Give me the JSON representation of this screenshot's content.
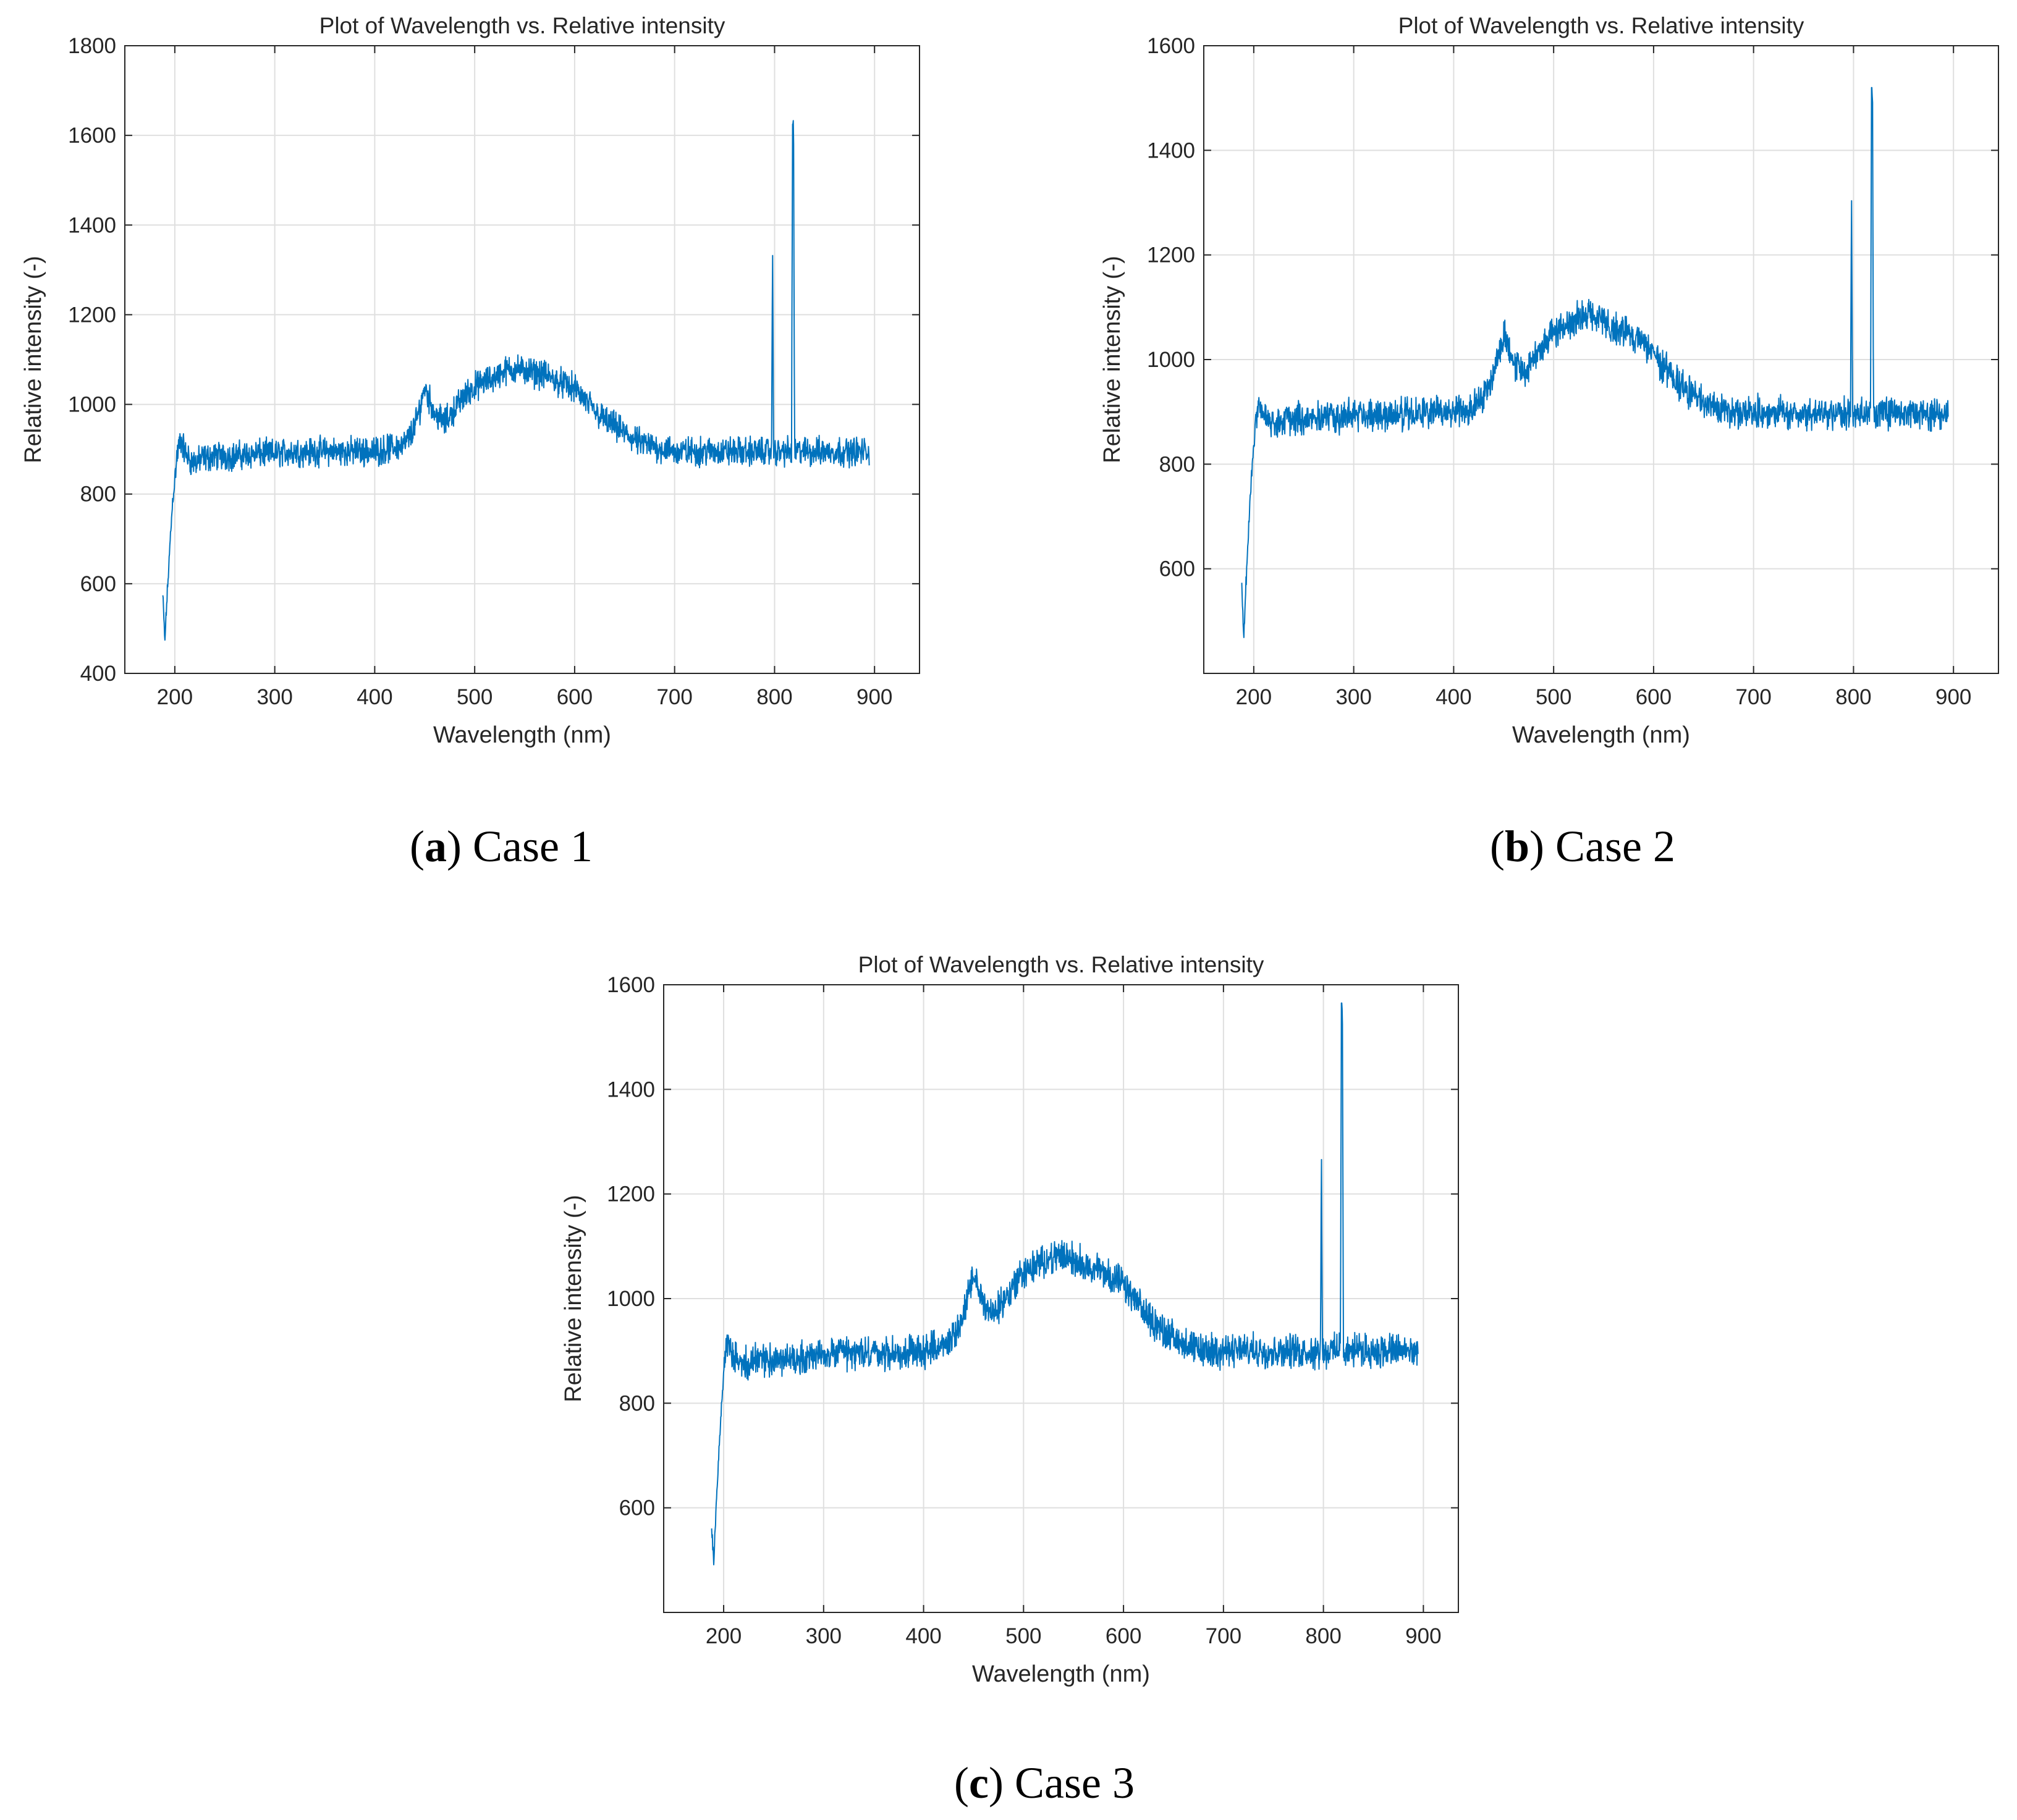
{
  "figure": {
    "line_color": "#0072BD",
    "grid_color": "#dfdfdf",
    "panels": [
      {
        "id": "a",
        "caption": {
          "letter": "a",
          "open": "(",
          "close": ")",
          "text": " Case 1"
        }
      },
      {
        "id": "b",
        "caption": {
          "letter": "b",
          "open": "(",
          "close": ")",
          "text": " Case 2"
        }
      },
      {
        "id": "c",
        "caption": {
          "letter": "c",
          "open": "(",
          "close": ")",
          "text": " Case 3"
        }
      }
    ]
  },
  "chart_data": [
    {
      "type": "line",
      "title": "Plot of Wavelength vs. Relative intensity",
      "xlabel": "Wavelength (nm)",
      "ylabel": "Relative intensity (-)",
      "xlim": [
        150,
        945
      ],
      "ylim": [
        400,
        1800
      ],
      "xticks": [
        200,
        300,
        400,
        500,
        600,
        700,
        800,
        900
      ],
      "xtick_labels": [
        "200",
        "300",
        "400",
        "500",
        "600",
        "700",
        "800",
        "900"
      ],
      "yticks": [
        400,
        600,
        800,
        1000,
        1200,
        1400,
        1600,
        1800
      ],
      "ytick_labels": [
        "400",
        "600",
        "800",
        "1000",
        "1200",
        "1400",
        "1600",
        "1800"
      ],
      "grid": true,
      "series": [
        {
          "name": "Relative intensity",
          "x": [
            188,
            190,
            192,
            194,
            196,
            198,
            200,
            202,
            204,
            206,
            210,
            215,
            220,
            230,
            240,
            260,
            280,
            300,
            320,
            340,
            360,
            380,
            400,
            410,
            420,
            430,
            440,
            445,
            450,
            455,
            460,
            470,
            480,
            490,
            500,
            510,
            520,
            530,
            540,
            550,
            560,
            570,
            580,
            590,
            600,
            610,
            620,
            630,
            640,
            650,
            660,
            670,
            680,
            690,
            700,
            720,
            740,
            760,
            780,
            795,
            797,
            798,
            799,
            800,
            801,
            803,
            810,
            816,
            817,
            818,
            819,
            820,
            821,
            823,
            830,
            840,
            850,
            860,
            870,
            880,
            890,
            895
          ],
          "y": [
            575,
            470,
            560,
            640,
            720,
            790,
            830,
            880,
            905,
            920,
            895,
            875,
            870,
            880,
            885,
            885,
            890,
            890,
            895,
            895,
            895,
            895,
            895,
            900,
            905,
            910,
            950,
            990,
            1040,
            1010,
            980,
            960,
            990,
            1020,
            1040,
            1050,
            1060,
            1075,
            1080,
            1075,
            1070,
            1065,
            1055,
            1045,
            1035,
            1010,
            985,
            965,
            950,
            935,
            920,
            910,
            905,
            900,
            895,
            895,
            895,
            895,
            895,
            895,
            895,
            1355,
            895,
            895,
            895,
            895,
            895,
            895,
            895,
            1625,
            1625,
            895,
            895,
            895,
            895,
            895,
            895,
            895,
            895,
            895,
            895,
            895
          ],
          "noise_amplitude": 28
        }
      ]
    },
    {
      "type": "line",
      "title": "Plot of Wavelength vs. Relative intensity",
      "xlabel": "Wavelength (nm)",
      "ylabel": "Relative intensity (-)",
      "xlim": [
        150,
        945
      ],
      "ylim": [
        400,
        1600
      ],
      "xticks": [
        200,
        300,
        400,
        500,
        600,
        700,
        800,
        900
      ],
      "xtick_labels": [
        "200",
        "300",
        "400",
        "500",
        "600",
        "700",
        "800",
        "900"
      ],
      "yticks": [
        600,
        800,
        1000,
        1200,
        1400,
        1600
      ],
      "ytick_labels": [
        "600",
        "800",
        "1000",
        "1200",
        "1400",
        "1600"
      ],
      "grid": true,
      "series": [
        {
          "name": "Relative intensity",
          "x": [
            188,
            190,
            192,
            194,
            196,
            198,
            200,
            202,
            204,
            206,
            210,
            215,
            220,
            230,
            240,
            260,
            280,
            300,
            320,
            340,
            360,
            380,
            400,
            410,
            420,
            430,
            440,
            445,
            450,
            455,
            460,
            470,
            480,
            490,
            500,
            510,
            520,
            530,
            540,
            550,
            560,
            570,
            580,
            590,
            600,
            610,
            620,
            630,
            640,
            650,
            660,
            670,
            680,
            690,
            700,
            720,
            740,
            760,
            780,
            795,
            797,
            798,
            799,
            800,
            801,
            803,
            810,
            816,
            817,
            818,
            819,
            820,
            821,
            823,
            830,
            840,
            850,
            860,
            870,
            880,
            890,
            895
          ],
          "y": [
            560,
            475,
            560,
            640,
            720,
            790,
            840,
            885,
            905,
            915,
            890,
            880,
            875,
            885,
            885,
            890,
            890,
            895,
            895,
            895,
            895,
            900,
            900,
            905,
            915,
            930,
            975,
            1010,
            1050,
            1030,
            995,
            975,
            1000,
            1030,
            1055,
            1065,
            1075,
            1085,
            1080,
            1070,
            1060,
            1055,
            1045,
            1030,
            1010,
            985,
            965,
            945,
            930,
            920,
            910,
            905,
            900,
            900,
            900,
            900,
            895,
            895,
            895,
            895,
            895,
            1325,
            895,
            895,
            895,
            895,
            895,
            895,
            895,
            1520,
            1520,
            895,
            895,
            895,
            895,
            895,
            895,
            895,
            895,
            895,
            895,
            895
          ],
          "noise_amplitude": 26
        }
      ]
    },
    {
      "type": "line",
      "title": "Plot of Wavelength vs. Relative intensity",
      "xlabel": "Wavelength (nm)",
      "ylabel": "Relative intensity (-)",
      "xlim": [
        140,
        935
      ],
      "ylim": [
        400,
        1600
      ],
      "xticks": [
        200,
        300,
        400,
        500,
        600,
        700,
        800,
        900
      ],
      "xtick_labels": [
        "200",
        "300",
        "400",
        "500",
        "600",
        "700",
        "800",
        "900"
      ],
      "yticks": [
        600,
        800,
        1000,
        1200,
        1400,
        1600
      ],
      "ytick_labels": [
        "600",
        "800",
        "1000",
        "1200",
        "1400",
        "1600"
      ],
      "grid": true,
      "series": [
        {
          "name": "Relative intensity",
          "x": [
            188,
            190,
            192,
            194,
            196,
            198,
            200,
            202,
            204,
            206,
            210,
            215,
            220,
            230,
            240,
            260,
            280,
            300,
            320,
            340,
            360,
            380,
            400,
            410,
            420,
            430,
            440,
            445,
            450,
            455,
            460,
            470,
            480,
            490,
            500,
            510,
            520,
            530,
            540,
            550,
            560,
            570,
            580,
            590,
            600,
            610,
            620,
            630,
            640,
            650,
            660,
            670,
            680,
            690,
            700,
            720,
            740,
            760,
            780,
            795,
            797,
            798,
            799,
            800,
            801,
            803,
            810,
            816,
            817,
            818,
            819,
            820,
            821,
            823,
            830,
            840,
            850,
            860,
            870,
            880,
            890,
            895
          ],
          "y": [
            570,
            490,
            580,
            660,
            740,
            800,
            860,
            895,
            905,
            905,
            885,
            880,
            875,
            880,
            885,
            885,
            890,
            890,
            895,
            895,
            895,
            895,
            900,
            905,
            910,
            925,
            970,
            1005,
            1040,
            1020,
            990,
            970,
            995,
            1025,
            1050,
            1060,
            1070,
            1080,
            1080,
            1075,
            1065,
            1060,
            1050,
            1040,
            1025,
            1000,
            975,
            955,
            940,
            925,
            915,
            905,
            900,
            900,
            900,
            900,
            900,
            900,
            900,
            900,
            900,
            1285,
            900,
            900,
            900,
            900,
            900,
            900,
            900,
            1565,
            1565,
            900,
            900,
            900,
            900,
            900,
            900,
            900,
            900,
            900,
            900,
            900
          ],
          "noise_amplitude": 27
        }
      ]
    }
  ]
}
